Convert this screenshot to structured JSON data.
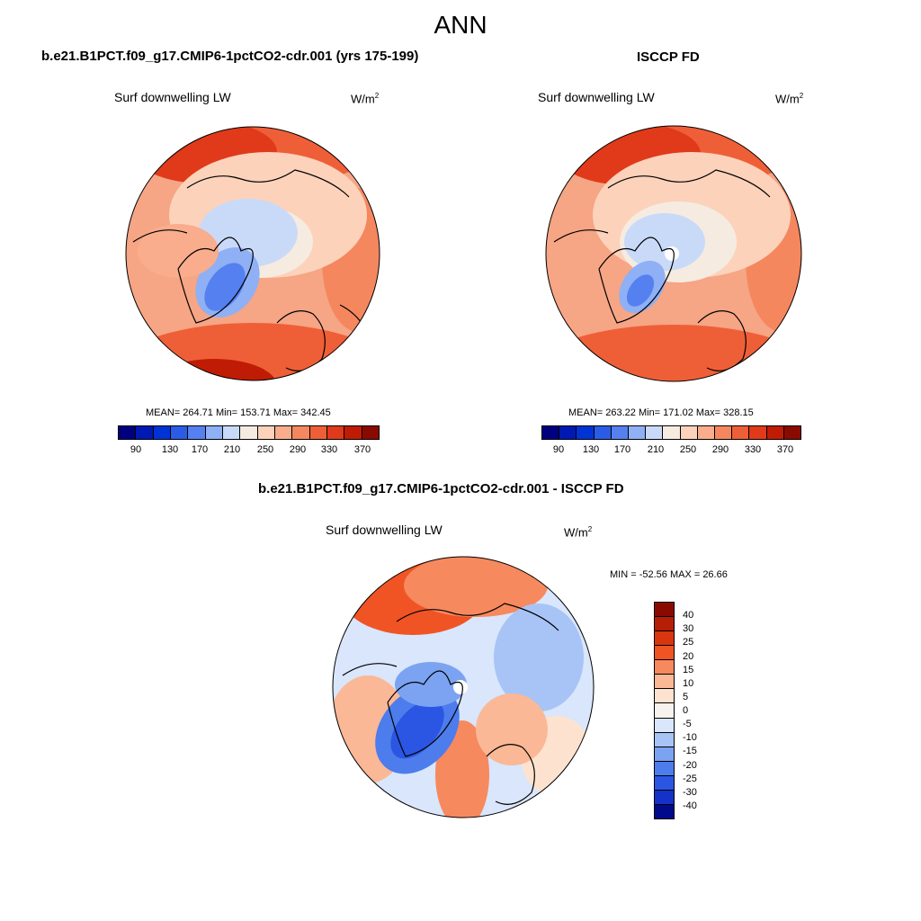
{
  "page_title": "ANN",
  "panels": [
    {
      "title": "b.e21.B1PCT.f09_g17.CMIP6-1pctCO2-cdr.001 (yrs 175-199)",
      "variable": "Surf downwelling LW",
      "units_base": "W/m",
      "units_exp": "2",
      "stats": "MEAN= 264.71  Min= 153.71  Max= 342.45"
    },
    {
      "title": "ISCCP FD",
      "variable": "Surf downwelling LW",
      "units_base": "W/m",
      "units_exp": "2",
      "stats": "MEAN= 263.22  Min= 171.02  Max= 328.15"
    },
    {
      "title": "b.e21.B1PCT.f09_g17.CMIP6-1pctCO2-cdr.001 - ISCCP FD",
      "variable": "Surf downwelling LW",
      "units_base": "W/m",
      "units_exp": "2",
      "stats": "MIN = -52.56 MAX =  26.66"
    }
  ],
  "colorbar_abs": {
    "colors": [
      "#00007f",
      "#0019b3",
      "#0033d6",
      "#2b5ce6",
      "#5580f0",
      "#8fb0f5",
      "#c9daf9",
      "#f6ebe0",
      "#fcd2bb",
      "#f9ad8c",
      "#f5875f",
      "#ef5f37",
      "#e03a1a",
      "#c01c05",
      "#8b0a00"
    ],
    "tick_labels": [
      "90",
      "130",
      "170",
      "210",
      "250",
      "290",
      "330",
      "370"
    ]
  },
  "colorbar_diff": {
    "colors": [
      "#8b0a00",
      "#b51f05",
      "#d9350f",
      "#f05425",
      "#f7895e",
      "#fab896",
      "#fde3cf",
      "#f7f2ee",
      "#d9e6fb",
      "#a8c4f6",
      "#7ba3f2",
      "#4d7cec",
      "#2a56e3",
      "#1532c8",
      "#000a8a"
    ],
    "tick_labels": [
      "40",
      "30",
      "25",
      "20",
      "15",
      "10",
      "5",
      "0",
      "-5",
      "-10",
      "-15",
      "-20",
      "-25",
      "-30",
      "-40"
    ]
  },
  "chart_data": [
    {
      "type": "heatmap",
      "projection": "north polar stereographic",
      "title": "b.e21.B1PCT.f09_g17.CMIP6-1pctCO2-cdr.001 (yrs 175-199)",
      "variable": "Surf downwelling LW",
      "units": "W/m2",
      "mean": 264.71,
      "min": 153.71,
      "max": 342.45,
      "levels": [
        90,
        110,
        130,
        150,
        170,
        190,
        210,
        230,
        250,
        270,
        290,
        310,
        330,
        350,
        370
      ]
    },
    {
      "type": "heatmap",
      "projection": "north polar stereographic",
      "title": "ISCCP FD",
      "variable": "Surf downwelling LW",
      "units": "W/m2",
      "mean": 263.22,
      "min": 171.02,
      "max": 328.15,
      "levels": [
        90,
        110,
        130,
        150,
        170,
        190,
        210,
        230,
        250,
        270,
        290,
        310,
        330,
        350,
        370
      ]
    },
    {
      "type": "heatmap",
      "projection": "north polar stereographic",
      "title": "b.e21.B1PCT.f09_g17.CMIP6-1pctCO2-cdr.001 - ISCCP FD",
      "variable": "Surf downwelling LW",
      "units": "W/m2",
      "min": -52.56,
      "max": 26.66,
      "levels": [
        40,
        30,
        25,
        20,
        15,
        10,
        5,
        0,
        -5,
        -10,
        -15,
        -20,
        -25,
        -30,
        -40
      ]
    }
  ]
}
